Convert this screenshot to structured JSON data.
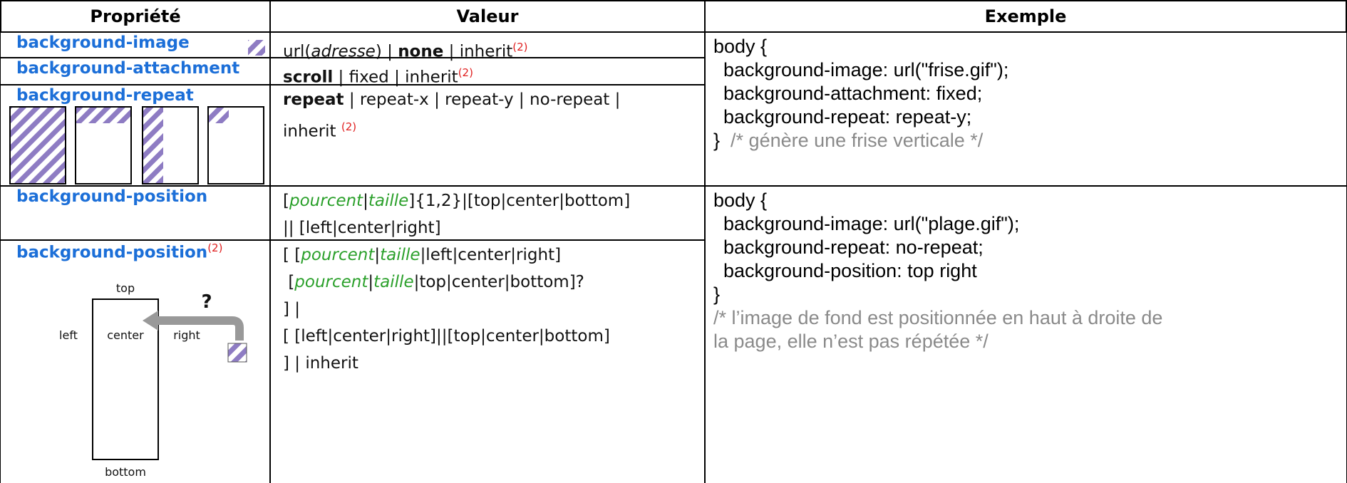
{
  "header": [
    "Propriété",
    "Valeur",
    "Exemple"
  ],
  "rows": [
    {
      "property": "background-image",
      "value": [
        [
          "url(",
          "adresse",
          ") | ",
          "none",
          " | inherit",
          "(2)"
        ]
      ]
    },
    {
      "property": "background-attachment",
      "value": [
        [
          "scroll",
          " | fixed | inherit",
          "(2)"
        ]
      ]
    },
    {
      "property": "background-repeat",
      "value": [
        [
          "repeat",
          " | repeat-x | repeat-y | no-repeat |"
        ],
        [
          "inherit ",
          "(2)"
        ]
      ]
    },
    {
      "property": "background-position",
      "value": [
        [
          "[",
          "pourcent",
          "|",
          "taille",
          "]{1,2}|[top|center|bottom]"
        ],
        [
          "|| [left|center|right]"
        ]
      ]
    },
    {
      "property": "background-position",
      "footnote": "(2)",
      "value": [
        [
          "[ [",
          "pourcent",
          "|",
          "taille",
          "|left|center|right]"
        ],
        [
          "[",
          "pourcent",
          "|",
          "taille",
          "|top|center|bottom]?"
        ],
        [
          "] |"
        ],
        [
          "[ [left|center|right]||[top|center|bottom]"
        ],
        [
          "] | inherit"
        ]
      ]
    }
  ],
  "examples": [
    [
      "body {",
      "background-image: url(\"frise.gif\");",
      "background-attachment: fixed;",
      "background-repeat: repeat-y;",
      "}",
      "/* génère une frise verticale */"
    ],
    [
      "body {",
      "background-image: url(\"plage.gif\");",
      "background-repeat: no-repeat;",
      "background-position: top right",
      "}",
      "/* l’image de fond est positionnée en haut à droite de la page, elle n’est pas répétée */"
    ]
  ],
  "diagram": {
    "top": "top",
    "left": "left",
    "center": "center",
    "right": "right",
    "bottom": "bottom",
    "question": "?"
  }
}
